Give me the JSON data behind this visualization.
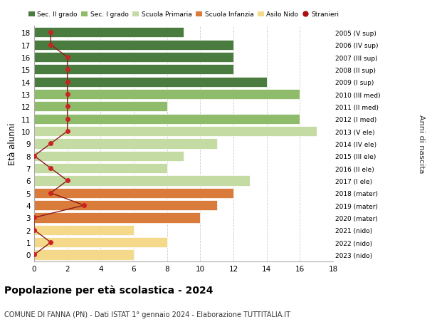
{
  "ages": [
    18,
    17,
    16,
    15,
    14,
    13,
    12,
    11,
    10,
    9,
    8,
    7,
    6,
    5,
    4,
    3,
    2,
    1,
    0
  ],
  "bar_values": [
    9,
    12,
    12,
    12,
    14,
    16,
    8,
    16,
    17,
    11,
    9,
    8,
    13,
    12,
    11,
    10,
    6,
    8,
    6
  ],
  "stranieri": [
    1,
    1,
    2,
    2,
    2,
    2,
    2,
    2,
    2,
    1,
    0,
    1,
    2,
    1,
    3,
    0,
    0,
    1,
    0
  ],
  "bar_colors": [
    "#4a7c3f",
    "#4a7c3f",
    "#4a7c3f",
    "#4a7c3f",
    "#4a7c3f",
    "#8fbc6a",
    "#8fbc6a",
    "#8fbc6a",
    "#c5dba4",
    "#c5dba4",
    "#c5dba4",
    "#c5dba4",
    "#c5dba4",
    "#d97b3a",
    "#d97b3a",
    "#d97b3a",
    "#f5d98b",
    "#f5d98b",
    "#f5d98b"
  ],
  "right_labels": [
    "2005 (V sup)",
    "2006 (IV sup)",
    "2007 (III sup)",
    "2008 (II sup)",
    "2009 (I sup)",
    "2010 (III med)",
    "2011 (II med)",
    "2012 (I med)",
    "2013 (V ele)",
    "2014 (IV ele)",
    "2015 (III ele)",
    "2016 (II ele)",
    "2017 (I ele)",
    "2018 (mater)",
    "2019 (mater)",
    "2020 (mater)",
    "2021 (nido)",
    "2022 (nido)",
    "2023 (nido)"
  ],
  "legend_labels": [
    "Sec. II grado",
    "Sec. I grado",
    "Scuola Primaria",
    "Scuola Infanzia",
    "Asilo Nido",
    "Stranieri"
  ],
  "legend_colors": [
    "#4a7c3f",
    "#8fbc6a",
    "#c5dba4",
    "#d97b3a",
    "#f5d98b",
    "#aa1111"
  ],
  "ylabel": "Età alunni",
  "right_ylabel": "Anni di nascita",
  "title": "Popolazione per età scolastica - 2024",
  "subtitle": "COMUNE DI FANNA (PN) - Dati ISTAT 1° gennaio 2024 - Elaborazione TUTTITALIA.IT",
  "xlim": [
    0,
    18
  ],
  "xticks": [
    0,
    2,
    4,
    6,
    8,
    10,
    12,
    14,
    16,
    18
  ],
  "bg_color": "#ffffff",
  "grid_color": "#cccccc",
  "stranieri_line_color": "#8b1a1a",
  "stranieri_dot_color": "#cc2222"
}
